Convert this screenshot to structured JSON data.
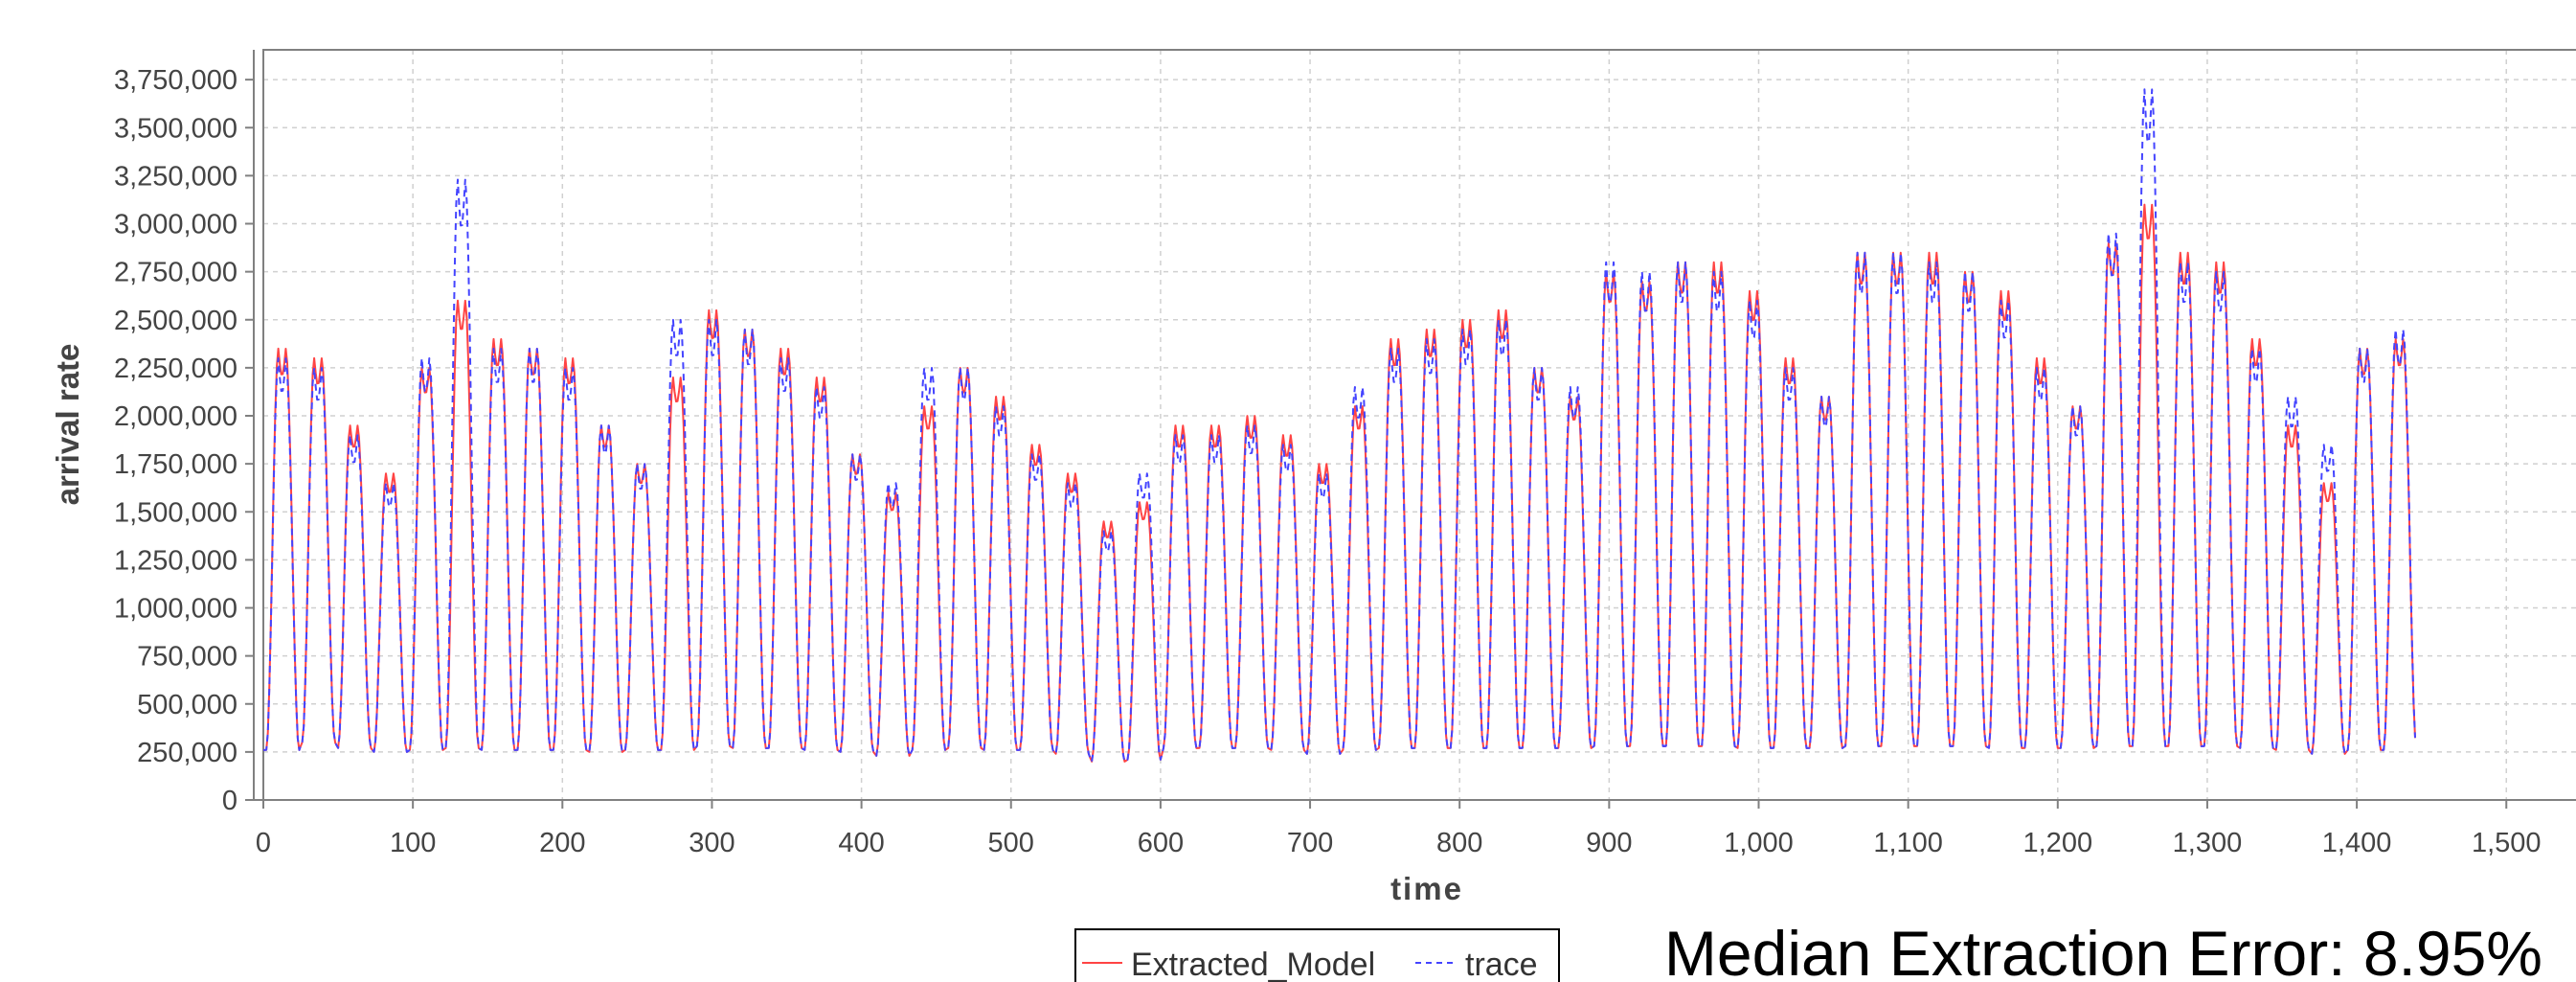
{
  "chart_data": {
    "type": "line",
    "title": "",
    "xlabel": "time",
    "ylabel": "arrival rate",
    "xlim": [
      0,
      1550
    ],
    "ylim": [
      0,
      3900000
    ],
    "x_ticks": [
      "0",
      "100",
      "200",
      "300",
      "400",
      "500",
      "600",
      "700",
      "800",
      "900",
      "1,000",
      "1,100",
      "1,200",
      "1,300",
      "1,400",
      "1,500"
    ],
    "y_ticks": [
      "0",
      "250,000",
      "500,000",
      "750,000",
      "1,000,000",
      "1,250,000",
      "1,500,000",
      "1,750,000",
      "2,000,000",
      "2,250,000",
      "2,500,000",
      "2,750,000",
      "3,000,000",
      "3,250,000",
      "3,500,000",
      "3,750,000"
    ],
    "x_tick_values": [
      0,
      100,
      200,
      300,
      400,
      500,
      600,
      700,
      800,
      900,
      1000,
      1100,
      1200,
      1300,
      1400,
      1500
    ],
    "y_tick_values": [
      0,
      250000,
      500000,
      750000,
      1000000,
      1250000,
      1500000,
      1750000,
      2000000,
      2250000,
      2500000,
      2750000,
      3000000,
      3250000,
      3500000,
      3750000
    ],
    "grid": true,
    "legend_position": "bottom-center",
    "series": [
      {
        "name": "Extracted_Model",
        "color": "#ff4444",
        "style": "solid"
      },
      {
        "name": "trace",
        "color": "#4444ff",
        "style": "dashed"
      }
    ],
    "cycle_period": 24,
    "cycle_start": 0,
    "cycle_end": 1480,
    "cycle_peaks": [
      2350000,
      2300000,
      1950000,
      1700000,
      2250000,
      2600000,
      2400000,
      2350000,
      2300000,
      1950000,
      1750000,
      2200000,
      2550000,
      2450000,
      2350000,
      2200000,
      1800000,
      1600000,
      2050000,
      2250000,
      2100000,
      1850000,
      1700000,
      1450000,
      1550000,
      1950000,
      1950000,
      2000000,
      1900000,
      1750000,
      2050000,
      2400000,
      2450000,
      2500000,
      2550000,
      2250000,
      2100000,
      2750000,
      2700000,
      2800000,
      2800000,
      2650000,
      2300000,
      2100000,
      2850000,
      2850000,
      2850000,
      2750000,
      2650000,
      2300000,
      2050000,
      2900000,
      3100000,
      2850000,
      2800000,
      2400000,
      1950000,
      1650000,
      2350000,
      2400000
    ],
    "trace_peaks": [
      2300000,
      2250000,
      1900000,
      1650000,
      2300000,
      3230000,
      2350000,
      2350000,
      2250000,
      1950000,
      1750000,
      2500000,
      2500000,
      2450000,
      2300000,
      2150000,
      1800000,
      1650000,
      2250000,
      2250000,
      2050000,
      1800000,
      1650000,
      1400000,
      1700000,
      1900000,
      1900000,
      1950000,
      1850000,
      1700000,
      2150000,
      2350000,
      2400000,
      2450000,
      2500000,
      2250000,
      2150000,
      2800000,
      2750000,
      2800000,
      2750000,
      2600000,
      2250000,
      2100000,
      2850000,
      2850000,
      2800000,
      2750000,
      2600000,
      2250000,
      2050000,
      2950000,
      3700000,
      2800000,
      2750000,
      2350000,
      2100000,
      1850000,
      2350000,
      2450000
    ],
    "troughs": [
      260000,
      300000,
      270000,
      250000,
      260000,
      270000,
      260000,
      260000,
      260000,
      250000,
      260000,
      260000,
      280000,
      270000,
      270000,
      260000,
      250000,
      230000,
      260000,
      270000,
      260000,
      260000,
      240000,
      200000,
      210000,
      270000,
      270000,
      270000,
      260000,
      240000,
      260000,
      270000,
      270000,
      270000,
      270000,
      270000,
      270000,
      280000,
      280000,
      280000,
      280000,
      270000,
      270000,
      270000,
      280000,
      280000,
      280000,
      280000,
      270000,
      270000,
      270000,
      280000,
      280000,
      280000,
      280000,
      270000,
      260000,
      240000,
      260000,
      260000
    ],
    "annotation": "Median Extraction Error: 8.95%"
  }
}
